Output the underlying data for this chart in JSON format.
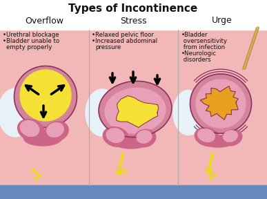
{
  "title": "Types of Incontinence",
  "title_fontsize": 11,
  "title_fontweight": "bold",
  "sections": [
    "Overflow",
    "Stress",
    "Urge"
  ],
  "section_fontsize": 9,
  "bg_pink": "#f2b8b8",
  "white_bg": "#ffffff",
  "blue_strip": "#6688bb",
  "bladder_yellow": "#f5e035",
  "bladder_orange": "#e8a020",
  "bladder_pink_outer": "#d4849a",
  "bladder_pink_mid": "#e8a0b8",
  "bladder_pink_light": "#f0c0c8",
  "dark_magenta": "#8b3060",
  "arrow_color": "#111111",
  "text_color": "#111111",
  "divider_color": "#aaaaaa",
  "urine_yellow": "#e8d820",
  "white_tissue": "#e8f0f8",
  "skin_pink": "#f5c8b0",
  "deep_pink": "#cc6688",
  "figsize": [
    3.87,
    2.88
  ],
  "dpi": 100
}
